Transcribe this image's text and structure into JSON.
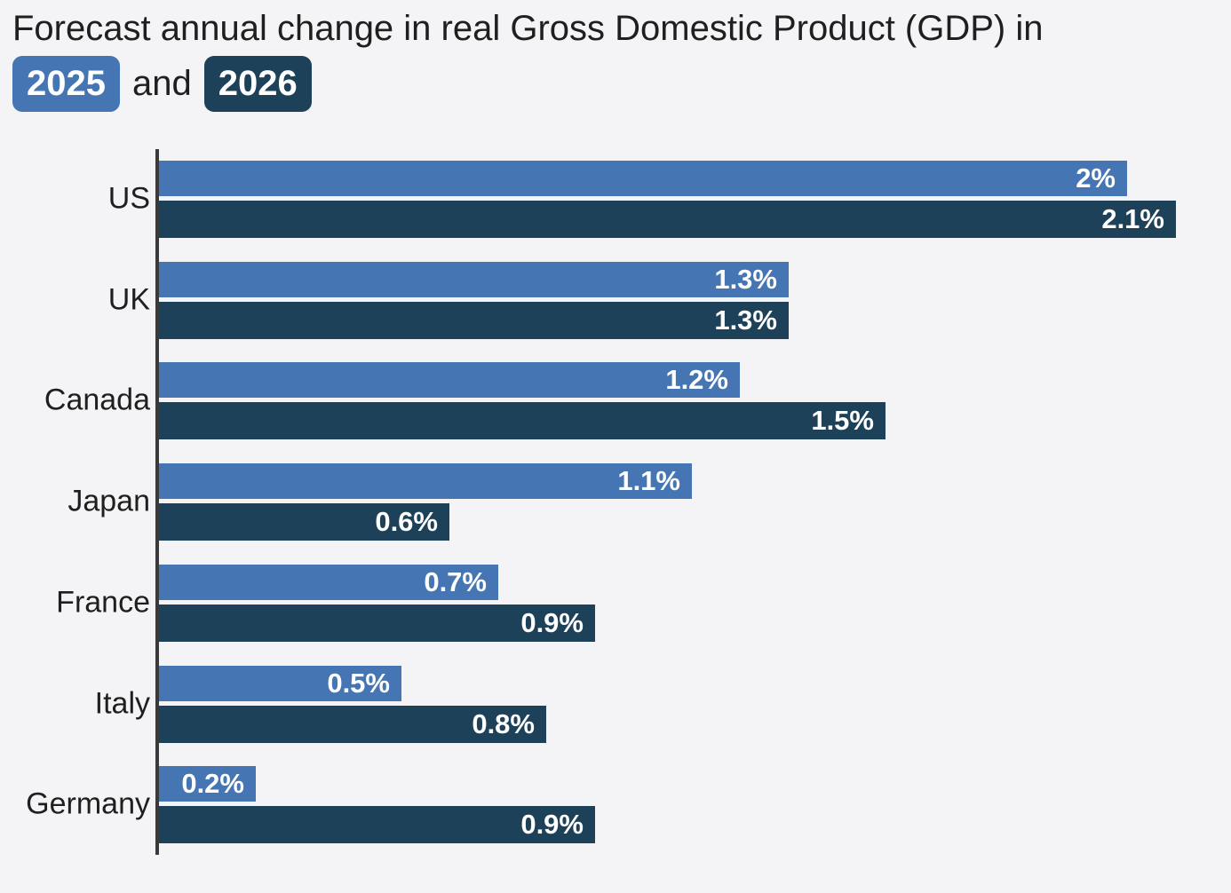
{
  "title": {
    "prefix": "Forecast annual change in real Gross Domestic Product (GDP) in",
    "badge_2025": "2025",
    "and_text": "and",
    "badge_2026": "2026"
  },
  "colors": {
    "year2025": "#4575b2",
    "year2026": "#1d4159",
    "background": "#f4f4f6",
    "axis": "#3a3a3a",
    "text": "#1f1f1f",
    "bar_label": "#ffffff"
  },
  "chart_data": {
    "type": "bar",
    "orientation": "horizontal",
    "title": "Forecast annual change in real Gross Domestic Product (GDP) in 2025 and 2026",
    "categories": [
      "US",
      "UK",
      "Canada",
      "Japan",
      "France",
      "Italy",
      "Germany"
    ],
    "series": [
      {
        "name": "2025",
        "color": "#4575b2",
        "values": [
          2,
          1.3,
          1.2,
          1.1,
          0.7,
          0.5,
          0.2
        ],
        "labels": [
          "2%",
          "1.3%",
          "1.2%",
          "1.1%",
          "0.7%",
          "0.5%",
          "0.2%"
        ]
      },
      {
        "name": "2026",
        "color": "#1d4159",
        "values": [
          2.1,
          1.3,
          1.5,
          0.6,
          0.9,
          0.8,
          0.9
        ],
        "labels": [
          "2.1%",
          "1.3%",
          "1.5%",
          "0.6%",
          "0.9%",
          "0.8%",
          "0.9%"
        ]
      }
    ],
    "xlim": [
      0,
      2.2
    ],
    "value_suffix": "%",
    "grid": false,
    "legend_position": "title-badges",
    "value_labels": "inside-end"
  }
}
